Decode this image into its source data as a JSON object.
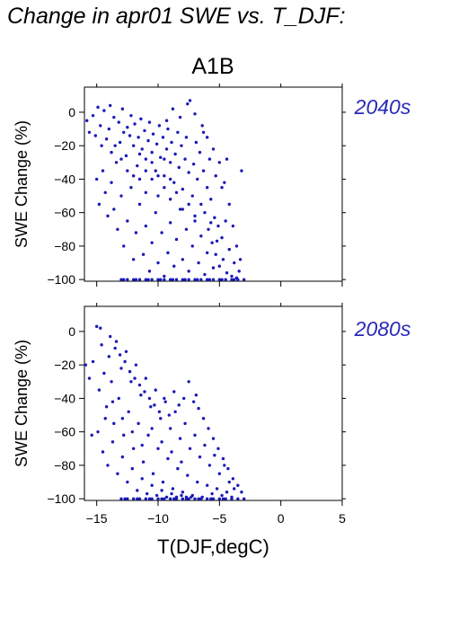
{
  "title": "Change in apr01 SWE vs. T_DJF:",
  "scenario": "A1B",
  "colors": {
    "points": "#1a1ab8",
    "period_label": "#2a2ab8",
    "axis": "#000000"
  },
  "chart_data": [
    {
      "type": "scatter",
      "period_label": "2040s",
      "ylabel": "SWE Change (%)",
      "xlabel": "",
      "xlim": [
        -16,
        5
      ],
      "ylim": [
        -101,
        15
      ],
      "xticks": [
        -15,
        -10,
        -5,
        0,
        5
      ],
      "yticks": [
        0,
        -20,
        -40,
        -60,
        -80,
        -100
      ],
      "ytick_labels": [
        "0",
        "−20",
        "−40",
        "−60",
        "−80",
        "−100"
      ],
      "grid": false,
      "points": [
        [
          -15.8,
          -5
        ],
        [
          -15.6,
          -12
        ],
        [
          -15.3,
          -2
        ],
        [
          -15.1,
          -14
        ],
        [
          -14.9,
          3
        ],
        [
          -14.7,
          -8
        ],
        [
          -14.6,
          -20
        ],
        [
          -14.4,
          1
        ],
        [
          -14.2,
          -16
        ],
        [
          -14.0,
          -10
        ],
        [
          -13.9,
          4
        ],
        [
          -13.8,
          -24
        ],
        [
          -13.6,
          -3
        ],
        [
          -13.4,
          -30
        ],
        [
          -13.2,
          -6
        ],
        [
          -13.1,
          -18
        ],
        [
          -12.9,
          2
        ],
        [
          -12.8,
          -12
        ],
        [
          -12.6,
          -26
        ],
        [
          -12.5,
          -9
        ],
        [
          -12.3,
          -14
        ],
        [
          -12.2,
          -2
        ],
        [
          -12.0,
          -20
        ],
        [
          -11.9,
          -7
        ],
        [
          -11.7,
          -32
        ],
        [
          -11.6,
          -15
        ],
        [
          -11.4,
          -4
        ],
        [
          -11.3,
          -22
        ],
        [
          -11.1,
          -11
        ],
        [
          -11.0,
          -28
        ],
        [
          -10.8,
          -17
        ],
        [
          -10.7,
          -6
        ],
        [
          -10.5,
          -24
        ],
        [
          -10.4,
          -13
        ],
        [
          -10.2,
          -35
        ],
        [
          -10.1,
          -19
        ],
        [
          -9.9,
          -8
        ],
        [
          -9.8,
          -27
        ],
        [
          -9.6,
          -15
        ],
        [
          -9.5,
          -38
        ],
        [
          -9.3,
          -22
        ],
        [
          -9.2,
          -10
        ],
        [
          -9.0,
          -30
        ],
        [
          -8.9,
          -18
        ],
        [
          -8.7,
          -42
        ],
        [
          -8.6,
          -25
        ],
        [
          -8.4,
          -12
        ],
        [
          -8.3,
          -33
        ],
        [
          -8.1,
          -20
        ],
        [
          -8.0,
          -46
        ],
        [
          -7.8,
          -28
        ],
        [
          -7.7,
          -15
        ],
        [
          -7.5,
          -36
        ],
        [
          -7.4,
          7
        ],
        [
          -7.2,
          -50
        ],
        [
          -7.1,
          -31
        ],
        [
          -6.9,
          -18
        ],
        [
          -6.8,
          -40
        ],
        [
          -6.6,
          -24
        ],
        [
          -6.5,
          -55
        ],
        [
          -6.3,
          -35
        ],
        [
          -6.2,
          -60
        ],
        [
          -6.0,
          -45
        ],
        [
          -5.9,
          -70
        ],
        [
          -5.7,
          -52
        ],
        [
          -5.6,
          -78
        ],
        [
          -5.4,
          -63
        ],
        [
          -5.3,
          -85
        ],
        [
          -5.1,
          -68
        ],
        [
          -5.0,
          -92
        ],
        [
          -4.8,
          -75
        ],
        [
          -4.7,
          -88
        ],
        [
          -4.5,
          -65
        ],
        [
          -4.4,
          -96
        ],
        [
          -4.2,
          -82
        ],
        [
          -4.0,
          -98
        ],
        [
          -3.8,
          -90
        ],
        [
          -3.6,
          -99
        ],
        [
          -3.4,
          -95
        ],
        [
          -3.2,
          -35
        ],
        [
          -15.0,
          -40
        ],
        [
          -14.8,
          -55
        ],
        [
          -14.5,
          -35
        ],
        [
          -14.3,
          -48
        ],
        [
          -14.1,
          -62
        ],
        [
          -13.8,
          -42
        ],
        [
          -13.6,
          -58
        ],
        [
          -13.3,
          -70
        ],
        [
          -13.0,
          -50
        ],
        [
          -12.8,
          -80
        ],
        [
          -12.5,
          -65
        ],
        [
          -12.2,
          -45
        ],
        [
          -12.0,
          -88
        ],
        [
          -11.8,
          -72
        ],
        [
          -11.5,
          -55
        ],
        [
          -11.2,
          -85
        ],
        [
          -11.0,
          -68
        ],
        [
          -10.7,
          -95
        ],
        [
          -10.5,
          -78
        ],
        [
          -10.2,
          -60
        ],
        [
          -10.0,
          -90
        ],
        [
          -9.7,
          -72
        ],
        [
          -9.5,
          -98
        ],
        [
          -9.2,
          -84
        ],
        [
          -9.0,
          -66
        ],
        [
          -8.7,
          -92
        ],
        [
          -8.5,
          -76
        ],
        [
          -8.2,
          -58
        ],
        [
          -8.0,
          -88
        ],
        [
          -7.7,
          -70
        ],
        [
          -7.5,
          -95
        ],
        [
          -7.2,
          -80
        ],
        [
          -7.0,
          -62
        ],
        [
          -6.7,
          -90
        ],
        [
          -6.5,
          -74
        ],
        [
          -6.2,
          -97
        ],
        [
          -6.0,
          -84
        ],
        [
          -5.7,
          -66
        ],
        [
          -5.5,
          -93
        ],
        [
          -5.2,
          -77
        ],
        [
          -13.0,
          -100
        ],
        [
          -12.5,
          -100
        ],
        [
          -12.0,
          -100
        ],
        [
          -11.5,
          -100
        ],
        [
          -11.0,
          -100
        ],
        [
          -10.5,
          -100
        ],
        [
          -10.0,
          -100
        ],
        [
          -9.5,
          -100
        ],
        [
          -9.0,
          -100
        ],
        [
          -8.5,
          -100
        ],
        [
          -8.0,
          -100
        ],
        [
          -7.5,
          -100
        ],
        [
          -7.0,
          -100
        ],
        [
          -6.5,
          -100
        ],
        [
          -6.0,
          -100
        ],
        [
          -5.5,
          -100
        ],
        [
          -5.0,
          -100
        ],
        [
          -4.5,
          -100
        ],
        [
          -4.0,
          -100
        ],
        [
          -3.5,
          -100
        ],
        [
          -3.0,
          -100
        ],
        [
          -12.8,
          -100
        ],
        [
          -11.8,
          -100
        ],
        [
          -10.8,
          -100
        ],
        [
          -9.8,
          -100
        ],
        [
          -8.8,
          -100
        ],
        [
          -7.8,
          -100
        ],
        [
          -6.8,
          -100
        ],
        [
          -5.8,
          -100
        ],
        [
          -4.8,
          -100
        ],
        [
          -3.8,
          -100
        ],
        [
          -9.3,
          -5
        ],
        [
          -8.8,
          2
        ],
        [
          -8.2,
          -3
        ],
        [
          -7.6,
          5
        ],
        [
          -7.0,
          -1
        ],
        [
          -6.4,
          -8
        ],
        [
          -6.0,
          -15
        ],
        [
          -5.5,
          -22
        ],
        [
          -5.0,
          -30
        ],
        [
          -4.6,
          -42
        ],
        [
          -4.2,
          -55
        ],
        [
          -3.9,
          -68
        ],
        [
          -3.6,
          -80
        ],
        [
          -3.3,
          -88
        ],
        [
          -4.4,
          -28
        ],
        [
          -4.8,
          -45
        ],
        [
          -5.3,
          -38
        ],
        [
          -5.8,
          -28
        ],
        [
          -6.3,
          -12
        ],
        [
          -11.5,
          -40
        ],
        [
          -11.0,
          -48
        ],
        [
          -10.5,
          -40
        ],
        [
          -10.0,
          -50
        ],
        [
          -9.5,
          -45
        ],
        [
          -9.0,
          -52
        ],
        [
          -8.5,
          -48
        ],
        [
          -8.0,
          -58
        ],
        [
          -7.5,
          -55
        ],
        [
          -7.0,
          -65
        ],
        [
          -13.5,
          -20
        ],
        [
          -13.0,
          -28
        ],
        [
          -12.5,
          -35
        ],
        [
          -12.0,
          -38
        ],
        [
          -11.5,
          -25
        ],
        [
          -11.0,
          -35
        ],
        [
          -10.5,
          -30
        ],
        [
          -10.0,
          -38
        ],
        [
          -9.5,
          -28
        ],
        [
          -9.0,
          -40
        ]
      ]
    },
    {
      "type": "scatter",
      "period_label": "2080s",
      "ylabel": "SWE Change (%)",
      "xlabel": "T(DJF,degC)",
      "xlim": [
        -16,
        5
      ],
      "ylim": [
        -101,
        15
      ],
      "xticks": [
        -15,
        -10,
        -5,
        0,
        5
      ],
      "xtick_labels": [
        "−15",
        "−10",
        "−5",
        "0",
        "5"
      ],
      "yticks": [
        0,
        -20,
        -40,
        -60,
        -80,
        -100
      ],
      "ytick_labels": [
        "0",
        "−20",
        "−40",
        "−60",
        "−80",
        "−100"
      ],
      "grid": false,
      "points": [
        [
          -15.9,
          -20
        ],
        [
          -15.6,
          -28
        ],
        [
          -15.3,
          -18
        ],
        [
          -15.0,
          3
        ],
        [
          -14.8,
          -35
        ],
        [
          -14.6,
          -8
        ],
        [
          -14.4,
          -25
        ],
        [
          -14.2,
          -45
        ],
        [
          -14.0,
          -15
        ],
        [
          -13.8,
          -30
        ],
        [
          -13.6,
          -55
        ],
        [
          -13.4,
          -6
        ],
        [
          -13.2,
          -40
        ],
        [
          -13.0,
          -22
        ],
        [
          -12.8,
          -62
        ],
        [
          -12.6,
          -12
        ],
        [
          -12.4,
          -48
        ],
        [
          -12.2,
          -30
        ],
        [
          -12.0,
          -70
        ],
        [
          -11.8,
          -20
        ],
        [
          -11.6,
          -55
        ],
        [
          -11.4,
          -38
        ],
        [
          -11.2,
          -78
        ],
        [
          -11.0,
          -28
        ],
        [
          -10.8,
          -62
        ],
        [
          -10.6,
          -45
        ],
        [
          -10.4,
          -85
        ],
        [
          -10.2,
          -35
        ],
        [
          -10.0,
          -70
        ],
        [
          -9.8,
          -52
        ],
        [
          -9.6,
          -90
        ],
        [
          -9.4,
          -42
        ],
        [
          -9.2,
          -76
        ],
        [
          -9.0,
          -58
        ],
        [
          -8.8,
          -94
        ],
        [
          -8.6,
          -48
        ],
        [
          -8.4,
          -82
        ],
        [
          -8.2,
          -64
        ],
        [
          -8.0,
          -96
        ],
        [
          -7.8,
          -55
        ],
        [
          -7.6,
          -86
        ],
        [
          -7.4,
          -70
        ],
        [
          -7.2,
          -98
        ],
        [
          -7.0,
          -62
        ],
        [
          -6.8,
          -90
        ],
        [
          -6.6,
          -75
        ],
        [
          -6.4,
          -99
        ],
        [
          -6.2,
          -68
        ],
        [
          -6.0,
          -92
        ],
        [
          -5.8,
          -80
        ],
        [
          -5.6,
          -97
        ],
        [
          -5.4,
          -74
        ],
        [
          -5.2,
          -94
        ],
        [
          -5.0,
          -85
        ],
        [
          -4.8,
          -98
        ],
        [
          -4.6,
          -80
        ],
        [
          -4.4,
          -96
        ],
        [
          -4.2,
          -90
        ],
        [
          -4.0,
          -99
        ],
        [
          -3.8,
          -94
        ],
        [
          -14.9,
          -60
        ],
        [
          -14.5,
          -72
        ],
        [
          -14.1,
          -80
        ],
        [
          -13.7,
          -66
        ],
        [
          -13.3,
          -85
        ],
        [
          -12.9,
          -75
        ],
        [
          -12.5,
          -90
        ],
        [
          -12.1,
          -82
        ],
        [
          -11.7,
          -95
        ],
        [
          -11.3,
          -88
        ],
        [
          -10.9,
          -97
        ],
        [
          -10.5,
          -92
        ],
        [
          -10.1,
          -98
        ],
        [
          -9.7,
          -95
        ],
        [
          -9.3,
          -99
        ],
        [
          -8.9,
          -97
        ],
        [
          -8.5,
          -99
        ],
        [
          -8.1,
          -98
        ],
        [
          -7.7,
          -99
        ],
        [
          -7.3,
          -99
        ],
        [
          -13.0,
          -100
        ],
        [
          -12.5,
          -100
        ],
        [
          -12.0,
          -100
        ],
        [
          -11.5,
          -100
        ],
        [
          -11.0,
          -100
        ],
        [
          -10.5,
          -100
        ],
        [
          -10.0,
          -100
        ],
        [
          -9.5,
          -100
        ],
        [
          -9.0,
          -100
        ],
        [
          -8.5,
          -100
        ],
        [
          -8.0,
          -100
        ],
        [
          -7.5,
          -100
        ],
        [
          -7.0,
          -100
        ],
        [
          -6.5,
          -100
        ],
        [
          -6.0,
          -100
        ],
        [
          -5.5,
          -100
        ],
        [
          -5.0,
          -100
        ],
        [
          -4.5,
          -100
        ],
        [
          -4.0,
          -100
        ],
        [
          -3.5,
          -100
        ],
        [
          -3.0,
          -100
        ],
        [
          -12.7,
          -100
        ],
        [
          -11.7,
          -100
        ],
        [
          -10.7,
          -100
        ],
        [
          -9.7,
          -100
        ],
        [
          -8.7,
          -100
        ],
        [
          -7.7,
          -100
        ],
        [
          -6.7,
          -100
        ],
        [
          -5.7,
          -100
        ],
        [
          -4.7,
          -100
        ],
        [
          -14.7,
          2
        ],
        [
          -13.9,
          -3
        ],
        [
          -13.5,
          -10
        ],
        [
          -13.1,
          -14
        ],
        [
          -12.7,
          -18
        ],
        [
          -12.3,
          -24
        ],
        [
          -11.9,
          -28
        ],
        [
          -11.5,
          -32
        ],
        [
          -11.1,
          -36
        ],
        [
          -10.7,
          -40
        ],
        [
          -10.3,
          -44
        ],
        [
          -9.9,
          -48
        ],
        [
          -9.5,
          -40
        ],
        [
          -9.1,
          -50
        ],
        [
          -8.7,
          -36
        ],
        [
          -8.3,
          -44
        ],
        [
          -7.9,
          -40
        ],
        [
          -7.5,
          -30
        ],
        [
          -7.1,
          -42
        ],
        [
          -6.7,
          -46
        ],
        [
          -6.3,
          -52
        ],
        [
          -5.9,
          -58
        ],
        [
          -5.5,
          -64
        ],
        [
          -5.1,
          -70
        ],
        [
          -4.7,
          -76
        ],
        [
          -4.3,
          -82
        ],
        [
          -3.9,
          -88
        ],
        [
          -3.5,
          -92
        ],
        [
          -3.2,
          -96
        ],
        [
          -6.9,
          -38
        ],
        [
          -15.4,
          -62
        ],
        [
          -14.3,
          -52
        ],
        [
          -13.7,
          -42
        ],
        [
          -12.9,
          -52
        ],
        [
          -12.1,
          -60
        ],
        [
          -11.3,
          -68
        ],
        [
          -10.5,
          -58
        ],
        [
          -9.7,
          -66
        ],
        [
          -8.9,
          -72
        ],
        [
          -8.1,
          -78
        ]
      ]
    }
  ]
}
